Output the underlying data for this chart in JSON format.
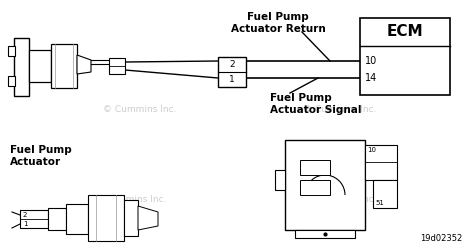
{
  "bg_color": "#ffffff",
  "watermark": "© Cummins Inc.",
  "ecm_label": "ECM",
  "pin10": "10",
  "pin14": "14",
  "pin2": "2",
  "pin1": "1",
  "label_return": "Fuel Pump\nActuator Return",
  "label_signal": "Fuel Pump\nActuator Signal",
  "label_actuator": "Fuel Pump\nActuator",
  "diagram_ref": "19d02352",
  "lw_main": 1.2,
  "lw_thin": 0.8,
  "gray_line": "#888888",
  "light_gray": "#aaaaaa",
  "wm_color": "#c8c8c8"
}
